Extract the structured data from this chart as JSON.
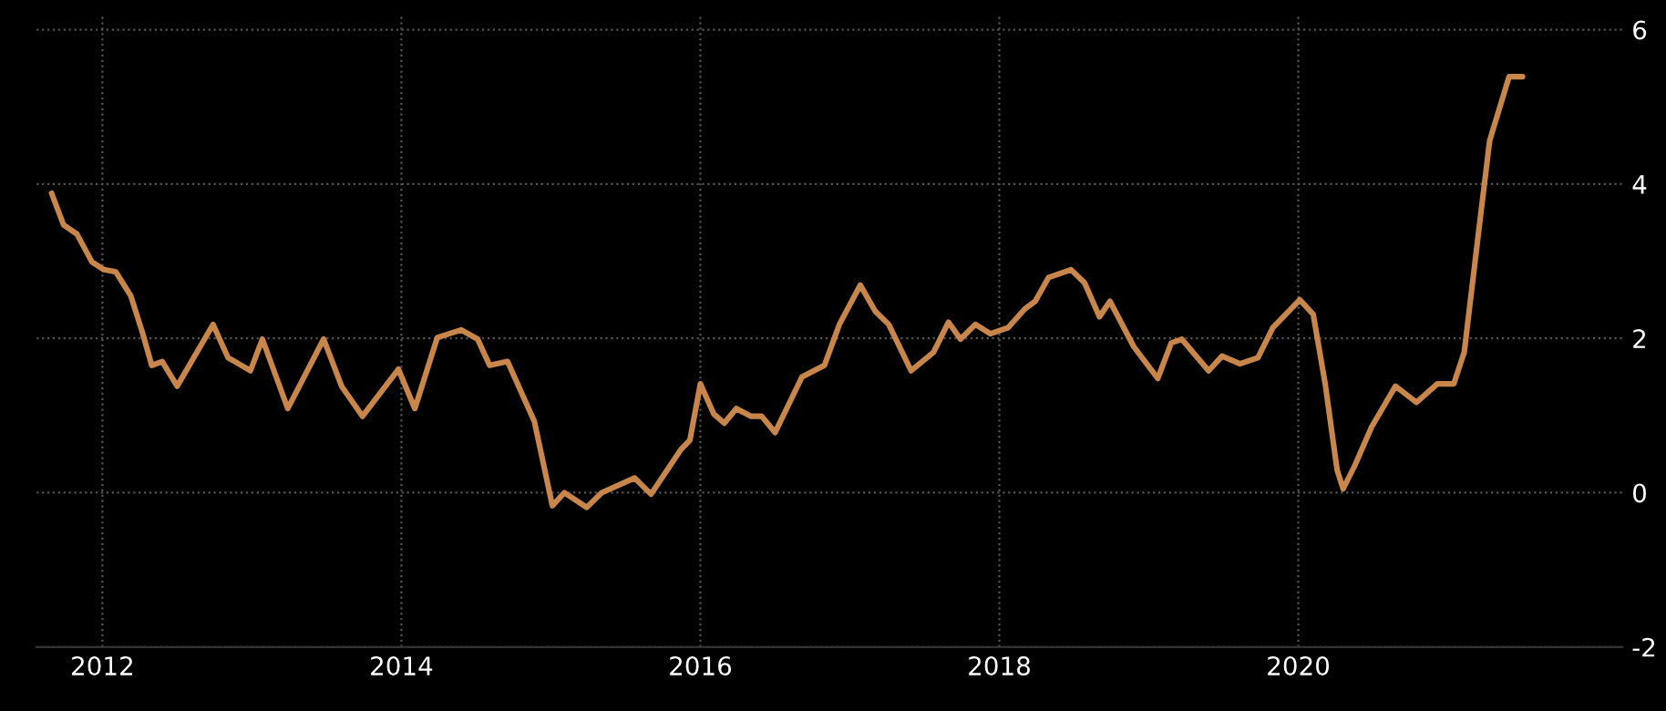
{
  "chart_data": {
    "type": "line",
    "x": [
      2011.66,
      2011.74,
      2011.83,
      2011.93,
      2012.01,
      2012.09,
      2012.19,
      2012.27,
      2012.33,
      2012.4,
      2012.5,
      2012.74,
      2012.84,
      2012.93,
      2012.99,
      2013.07,
      2013.24,
      2013.48,
      2013.6,
      2013.74,
      2013.98,
      2014.09,
      2014.24,
      2014.4,
      2014.51,
      2014.59,
      2014.71,
      2014.89,
      2015.01,
      2015.09,
      2015.24,
      2015.34,
      2015.56,
      2015.67,
      2015.87,
      2015.93,
      2016.0,
      2016.09,
      2016.16,
      2016.24,
      2016.34,
      2016.41,
      2016.5,
      2016.68,
      2016.83,
      2016.93,
      2017.07,
      2017.17,
      2017.26,
      2017.41,
      2017.56,
      2017.66,
      2017.74,
      2017.84,
      2017.94,
      2018.06,
      2018.17,
      2018.24,
      2018.33,
      2018.48,
      2018.57,
      2018.67,
      2018.74,
      2018.9,
      2019.06,
      2019.15,
      2019.22,
      2019.4,
      2019.49,
      2019.61,
      2019.73,
      2019.83,
      2020.01,
      2020.1,
      2020.18,
      2020.26,
      2020.3,
      2020.38,
      2020.49,
      2020.65,
      2020.79,
      2020.93,
      2021.04,
      2021.11,
      2021.2,
      2021.28,
      2021.41,
      2021.5
    ],
    "series": [
      {
        "color": "#c8864a",
        "values": [
          3.88,
          3.47,
          3.35,
          2.99,
          2.89,
          2.86,
          2.55,
          2.06,
          1.65,
          1.7,
          1.38,
          2.18,
          1.75,
          1.65,
          1.58,
          1.99,
          1.09,
          1.99,
          1.38,
          0.99,
          1.6,
          1.09,
          2.01,
          2.11,
          1.99,
          1.65,
          1.7,
          0.92,
          -0.17,
          0.0,
          -0.19,
          0.0,
          0.19,
          -0.02,
          0.56,
          0.68,
          1.41,
          1.02,
          0.9,
          1.09,
          0.99,
          0.99,
          0.78,
          1.5,
          1.65,
          2.18,
          2.69,
          2.35,
          2.18,
          1.58,
          1.82,
          2.21,
          1.99,
          2.18,
          2.06,
          2.14,
          2.38,
          2.48,
          2.79,
          2.89,
          2.72,
          2.28,
          2.48,
          1.89,
          1.48,
          1.94,
          1.99,
          1.58,
          1.77,
          1.67,
          1.75,
          2.14,
          2.5,
          2.31,
          1.41,
          0.29,
          0.05,
          0.36,
          0.85,
          1.38,
          1.17,
          1.41,
          1.41,
          1.82,
          3.28,
          4.56,
          5.39,
          5.39
        ]
      }
    ],
    "xlim": [
      2011.56,
      2022.17
    ],
    "xticks": [
      2012,
      2014,
      2016,
      2018,
      2020
    ],
    "ylim": [
      -2,
      6.2
    ],
    "yticks": [
      -2,
      0,
      2,
      4,
      6
    ],
    "grid": true,
    "legend": false,
    "marker": "none",
    "line_style": "solid"
  }
}
